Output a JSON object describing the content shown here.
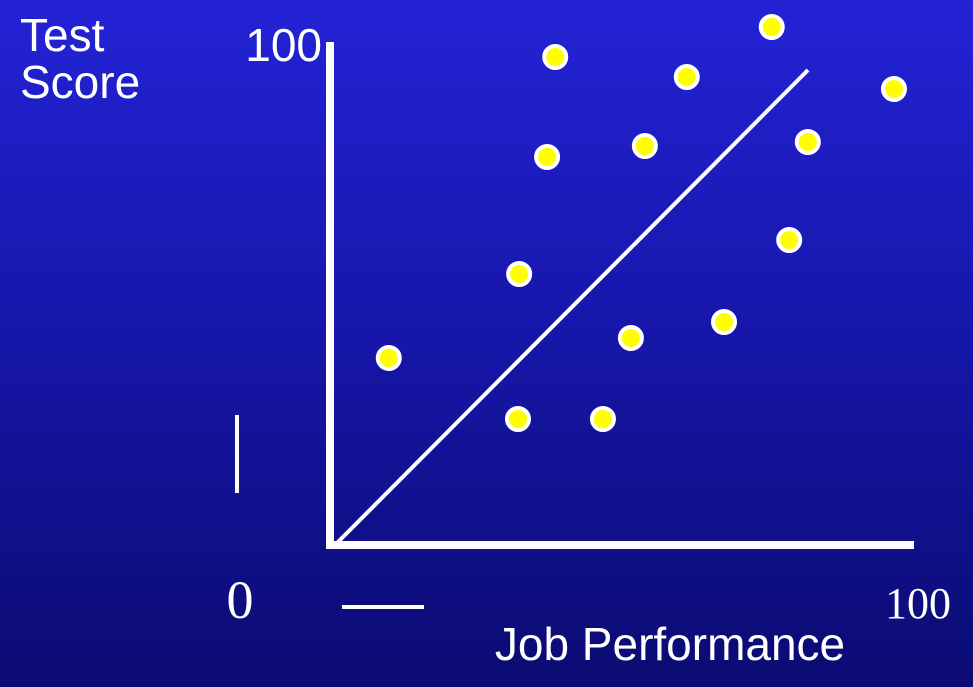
{
  "chart_data": {
    "type": "scatter",
    "y_label": "Test Score",
    "x_label": "Job Performance",
    "x": [
      10.1,
      32.5,
      32.3,
      46.9,
      51.7,
      67.7,
      78.9,
      37.3,
      54.1,
      82.1,
      38.7,
      61.3,
      75.9,
      96.9
    ],
    "y": [
      37.4,
      54.2,
      25.2,
      25.2,
      41.4,
      44.6,
      61,
      77.6,
      79.8,
      80.6,
      97.6,
      93.6,
      103.6,
      91.2
    ],
    "color": "#ffff00",
    "xlim": [
      0,
      100
    ],
    "ylim": [
      0,
      100
    ],
    "xticks": [
      0,
      100
    ],
    "yticks": [
      100
    ]
  }
}
